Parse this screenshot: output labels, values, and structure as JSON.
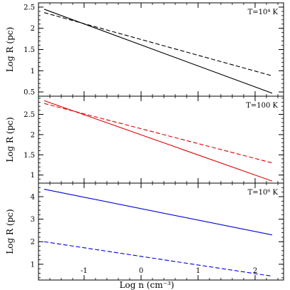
{
  "chart_data": [
    {
      "type": "line",
      "annotation": "T=10⁴ K",
      "xlabel": "",
      "ylabel": "Log R (pc)",
      "xlim": [
        -1.8,
        2.5
      ],
      "ylim": [
        0.4,
        2.6
      ],
      "xticks": [
        -1,
        0,
        1,
        2
      ],
      "yticks": [
        0.5,
        1,
        1.5,
        2,
        2.5
      ],
      "series": [
        {
          "style": "solid",
          "color": "#000000",
          "x": [
            -1.7,
            2.3
          ],
          "y": [
            2.45,
            0.47
          ]
        },
        {
          "style": "dashed",
          "color": "#000000",
          "x": [
            -1.7,
            2.3
          ],
          "y": [
            2.37,
            0.88
          ]
        }
      ]
    },
    {
      "type": "line",
      "annotation": "T=100 K",
      "xlabel": "",
      "ylabel": "Log R (pc)",
      "xlim": [
        -1.8,
        2.5
      ],
      "ylim": [
        0.8,
        2.95
      ],
      "xticks": [
        -1,
        0,
        1,
        2
      ],
      "yticks": [
        1,
        1.5,
        2,
        2.5
      ],
      "series": [
        {
          "style": "solid",
          "color": "#e00000",
          "x": [
            -1.7,
            2.3
          ],
          "y": [
            2.84,
            0.85
          ]
        },
        {
          "style": "dashed",
          "color": "#e00000",
          "x": [
            -1.7,
            2.3
          ],
          "y": [
            2.77,
            1.3
          ]
        }
      ]
    },
    {
      "type": "line",
      "annotation": "T=10⁶ K",
      "xlabel": "Log n (cm⁻³)",
      "ylabel": "Log R (pc)",
      "xlim": [
        -1.8,
        2.5
      ],
      "ylim": [
        0.3,
        4.6
      ],
      "xticks": [
        -1,
        0,
        1,
        2
      ],
      "yticks": [
        1,
        2,
        3,
        4
      ],
      "series": [
        {
          "style": "solid",
          "color": "#0000e0",
          "x": [
            -1.7,
            2.3
          ],
          "y": [
            4.33,
            2.3
          ]
        },
        {
          "style": "dashed",
          "color": "#0000e0",
          "x": [
            -1.7,
            2.3
          ],
          "y": [
            2.0,
            0.47
          ]
        }
      ]
    }
  ]
}
